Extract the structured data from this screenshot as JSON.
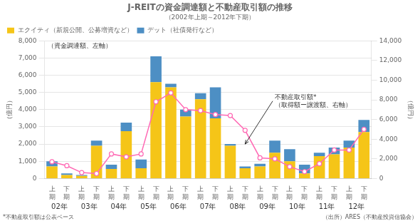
{
  "chart_data": {
    "type": "bar",
    "title": "J-REITの資金調達額と不動産取引額の推移",
    "subtitle": "（2002年上期～2012年下期）",
    "categories": [
      [
        "上",
        "期"
      ],
      [
        "下",
        "期"
      ],
      [
        "上",
        "期"
      ],
      [
        "下",
        "期"
      ],
      [
        "上",
        "期"
      ],
      [
        "下",
        "期"
      ],
      [
        "上",
        "期"
      ],
      [
        "下",
        "期"
      ],
      [
        "上",
        "期"
      ],
      [
        "下",
        "期"
      ],
      [
        "上",
        "期"
      ],
      [
        "下",
        "期"
      ],
      [
        "上",
        "期"
      ],
      [
        "下",
        "期"
      ],
      [
        "上",
        "期"
      ],
      [
        "下",
        "期"
      ],
      [
        "上",
        "期"
      ],
      [
        "下",
        "期"
      ],
      [
        "上",
        "期"
      ],
      [
        "下",
        "期"
      ],
      [
        "上",
        "期"
      ],
      [
        "下",
        "期"
      ]
    ],
    "x_groups": [
      "02年",
      "03年",
      "04年",
      "05年",
      "06年",
      "07年",
      "08年",
      "09年",
      "10年",
      "11年",
      "12年"
    ],
    "ylabel": "（億円）",
    "y2label": "（億円）",
    "stacked": true,
    "grid": true,
    "legend": "upper left",
    "legend_note": "（資金調達額、左軸）",
    "series": [
      {
        "name": "エクイティ（新規公開、公募増資など）",
        "color": "#F5C518",
        "values": [
          700,
          200,
          150,
          1900,
          550,
          2750,
          600,
          5600,
          5300,
          3600,
          4600,
          3500,
          1900,
          600,
          700,
          1500,
          1000,
          300,
          1300,
          1400,
          1800,
          2700
        ]
      },
      {
        "name": "デット（社債発行など）",
        "color": "#4D8FC4",
        "values": [
          300,
          100,
          50,
          300,
          250,
          500,
          500,
          1500,
          200,
          400,
          350,
          1800,
          100,
          100,
          150,
          700,
          700,
          500,
          200,
          400,
          400,
          700
        ]
      },
      {
        "type": "line",
        "axis": "y2",
        "color": "#FF69B4",
        "marker": "circle",
        "line_style": "solid",
        "values": [
          1700,
          1300,
          600,
          500,
          2500,
          2200,
          2500,
          7800,
          8700,
          7000,
          6900,
          6500,
          6400,
          4900,
          2100,
          2000,
          1200,
          700,
          1500,
          2900,
          2900,
          5000
        ]
      }
    ],
    "ylim": [
      0,
      8000
    ],
    "yticks": [
      0,
      {
        "value": 1000,
        "label": "1,000"
      },
      {
        "value": 2000,
        "label": "2,000"
      },
      {
        "value": 3000,
        "label": "3,000"
      },
      {
        "value": 4000,
        "label": "4,000"
      },
      {
        "value": 5000,
        "label": "5,000"
      },
      {
        "value": 6000,
        "label": "6,000"
      },
      {
        "value": 7000,
        "label": "7,000"
      },
      {
        "value": 8000,
        "label": "8,000"
      }
    ],
    "y2lim": [
      0,
      14000
    ],
    "y2ticks": [
      0,
      {
        "value": 2000,
        "label": "2,000"
      },
      {
        "value": 4000,
        "label": "4,000"
      },
      {
        "value": 6000,
        "label": "6,000"
      },
      {
        "value": 8000,
        "label": "8,000"
      },
      {
        "value": 10000,
        "label": "10,000"
      },
      {
        "value": 12000,
        "label": "12,000"
      },
      {
        "value": 14000,
        "label": "14,000"
      }
    ],
    "annotations": [
      {
        "text": "不動産取引額*\n（取得額ー譲渡額、右軸）",
        "x": 15,
        "y": 4500,
        "arrow_x": 13,
        "arrow_y": 2000
      }
    ],
    "footnotes": [
      "*不動産取引額は公表ベース",
      "（出所）ARES（不動産投資信協会）"
    ]
  }
}
